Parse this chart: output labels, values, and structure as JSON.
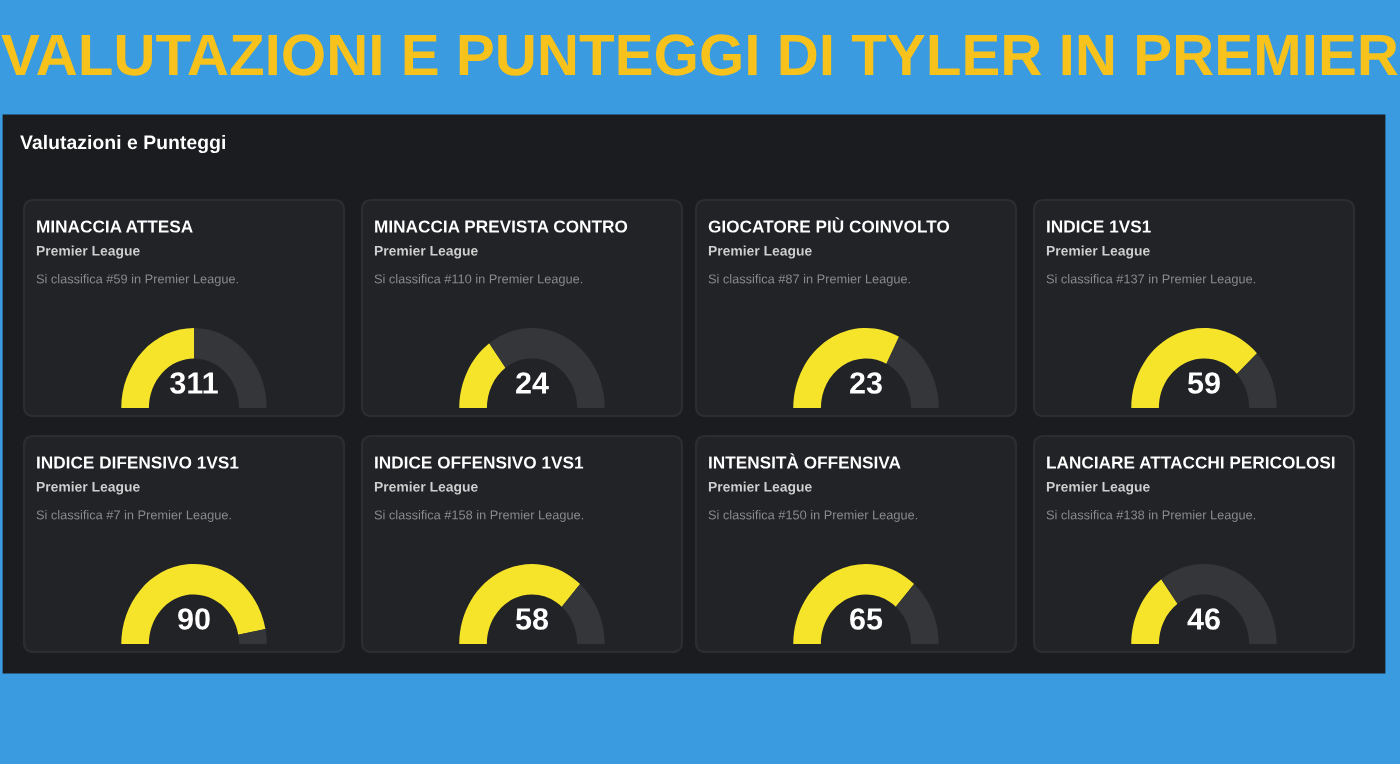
{
  "chart_data": [
    {
      "type": "other",
      "title": "VALUTAZIONI E PUNTEGGI DI TYLER IN PREMIER",
      "subtitle": "Valutazioni e Punteggi"
    },
    {
      "type": "donut",
      "title": "MINACCIA ATTESA",
      "subtitle": "Premier League",
      "categories": [
        null,
        null
      ],
      "values": [
        50,
        50
      ],
      "colors": [
        "#f5e42a",
        "#35363a"
      ],
      "annotations": [
        "Si classifica #59 in Premier League.",
        "311"
      ]
    },
    {
      "type": "donut",
      "title": "MINACCIA PREVISTA CONTRO",
      "subtitle": "Premier League",
      "categories": [
        null,
        null
      ],
      "values": [
        30,
        70
      ],
      "colors": [
        "#f5e42a",
        "#35363a"
      ],
      "annotations": [
        "Si classifica #110 in Premier League.",
        "24"
      ]
    },
    {
      "type": "donut",
      "title": "GIOCATORE PIÙ COINVOLTO",
      "subtitle": "Premier League",
      "categories": [
        null,
        null
      ],
      "values": [
        65,
        35
      ],
      "colors": [
        "#f5e42a",
        "#35363a"
      ],
      "annotations": [
        "Si classifica #87 in Premier League.",
        "23"
      ]
    },
    {
      "type": "donut",
      "title": "INDICE 1VS1",
      "subtitle": "Premier League",
      "categories": [
        null,
        null
      ],
      "values": [
        76,
        24
      ],
      "colors": [
        "#f5e42a",
        "#35363a"
      ],
      "annotations": [
        "Si classifica #137 in Premier League.",
        "59"
      ]
    },
    {
      "type": "donut",
      "title": "INDICE DIFENSIVO 1VS1",
      "subtitle": "Premier League",
      "categories": [
        null,
        null
      ],
      "values": [
        94,
        6
      ],
      "colors": [
        "#f5e42a",
        "#35363a"
      ],
      "annotations": [
        "Si classifica #7 in Premier League.",
        "90"
      ]
    },
    {
      "type": "donut",
      "title": "INDICE OFFENSIVO 1VS1",
      "subtitle": "Premier League",
      "categories": [
        null,
        null
      ],
      "values": [
        73,
        27
      ],
      "colors": [
        "#f5e42a",
        "#35363a"
      ],
      "annotations": [
        "Si classifica #158 in Premier League.",
        "58"
      ]
    },
    {
      "type": "donut",
      "title": "INTENSITÀ OFFENSIVA",
      "subtitle": "Premier League",
      "categories": [
        null,
        null
      ],
      "values": [
        73,
        27
      ],
      "colors": [
        "#f5e42a",
        "#35363a"
      ],
      "annotations": [
        "Si classifica #150 in Premier League.",
        "65"
      ]
    },
    {
      "type": "donut",
      "title": "LANCIARE ATTACCHI PERICOLOSI",
      "subtitle": "Premier League",
      "categories": [
        null,
        null
      ],
      "values": [
        30,
        70
      ],
      "colors": [
        "#f5e42a",
        "#35363a"
      ],
      "annotations": [
        "Si classifica #138 in Premier League.",
        "46"
      ]
    }
  ]
}
